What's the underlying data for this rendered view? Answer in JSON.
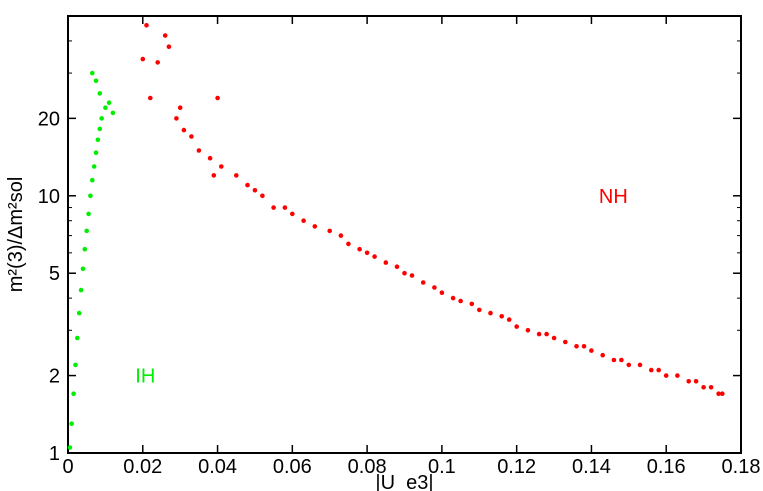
{
  "chart_data": {
    "type": "scatter",
    "title": "",
    "xlabel": "|U_e3|",
    "ylabel": "m²(3)/Δm²sol",
    "xscale": "linear",
    "yscale": "log",
    "xlim": [
      0,
      0.18
    ],
    "ylim": [
      1,
      50
    ],
    "grid": false,
    "legend": "none",
    "x_ticks": [
      0,
      0.02,
      0.04,
      0.06,
      0.08,
      0.1,
      0.12,
      0.14,
      0.16,
      0.18
    ],
    "x_tick_labels": [
      "0",
      "0.02",
      "0.04",
      "0.06",
      "0.08",
      "0.1",
      "0.12",
      "0.14",
      "0.16",
      "0.18"
    ],
    "y_ticks": [
      1,
      2,
      5,
      10,
      20
    ],
    "y_tick_labels": [
      "1",
      "2",
      "5",
      "10",
      "20"
    ],
    "annotations": [
      {
        "text": "NH",
        "x": 0.142,
        "y": 10,
        "color": "#ff0000"
      },
      {
        "text": "IH",
        "x": 0.018,
        "y": 2,
        "color": "#00ee00"
      }
    ],
    "series": [
      {
        "name": "NH",
        "color": "#ff0000",
        "x": [
          0.021,
          0.026,
          0.027,
          0.02,
          0.024,
          0.022,
          0.03,
          0.029,
          0.031,
          0.033,
          0.04,
          0.035,
          0.038,
          0.041,
          0.039,
          0.045,
          0.048,
          0.05,
          0.052,
          0.055,
          0.058,
          0.06,
          0.063,
          0.066,
          0.07,
          0.073,
          0.075,
          0.078,
          0.08,
          0.082,
          0.085,
          0.088,
          0.09,
          0.092,
          0.095,
          0.098,
          0.1,
          0.103,
          0.105,
          0.108,
          0.11,
          0.113,
          0.116,
          0.118,
          0.12,
          0.123,
          0.126,
          0.128,
          0.13,
          0.133,
          0.136,
          0.138,
          0.14,
          0.143,
          0.146,
          0.148,
          0.15,
          0.153,
          0.156,
          0.158,
          0.16,
          0.163,
          0.166,
          0.168,
          0.17,
          0.172,
          0.174,
          0.175
        ],
        "y": [
          46,
          42,
          38,
          34,
          33,
          24,
          22,
          20,
          18,
          17,
          24,
          15,
          14,
          13,
          12,
          12,
          11,
          10.5,
          10,
          9,
          9,
          8.5,
          8,
          7.6,
          7.3,
          7,
          6.5,
          6.2,
          6,
          5.8,
          5.5,
          5.3,
          5,
          4.9,
          4.6,
          4.4,
          4.2,
          4,
          3.9,
          3.8,
          3.6,
          3.5,
          3.4,
          3.3,
          3.1,
          3,
          2.9,
          2.9,
          2.8,
          2.7,
          2.6,
          2.6,
          2.5,
          2.4,
          2.3,
          2.3,
          2.2,
          2.2,
          2.1,
          2.1,
          2,
          2,
          1.9,
          1.9,
          1.8,
          1.8,
          1.7,
          1.7
        ]
      },
      {
        "name": "IH",
        "color": "#00ee00",
        "x": [
          0.0005,
          0.001,
          0.0015,
          0.002,
          0.0025,
          0.003,
          0.0035,
          0.004,
          0.0045,
          0.005,
          0.0055,
          0.006,
          0.0065,
          0.007,
          0.0075,
          0.008,
          0.0085,
          0.009,
          0.01,
          0.011,
          0.012,
          0.0065,
          0.0075,
          0.0085
        ],
        "y": [
          1.05,
          1.3,
          1.7,
          2.2,
          2.8,
          3.5,
          4.3,
          5.2,
          6.2,
          7.3,
          8.5,
          10,
          11.5,
          13,
          14.7,
          16.5,
          18.2,
          20,
          22,
          23,
          21,
          30,
          28,
          25
        ]
      }
    ]
  }
}
